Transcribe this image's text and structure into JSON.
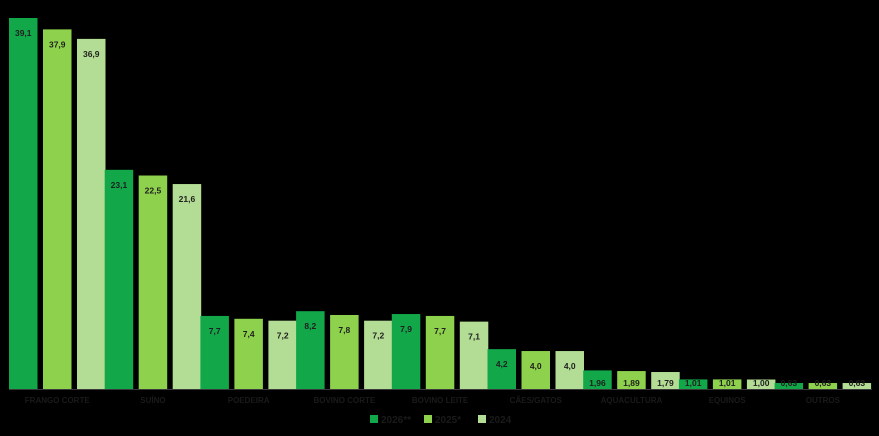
{
  "chart_data": {
    "type": "bar",
    "title": "",
    "xlabel": "",
    "ylabel": "",
    "ylim": [
      0,
      39.1
    ],
    "grid": false,
    "legend_position": "bottom",
    "categories": [
      "FRANGO CORTE",
      "SUÍNO",
      "POEDEIRA",
      "BOVINO CORTE",
      "BOVINO LEITE",
      "CÃES/GATOS",
      "AQUACULTURA",
      "EQUINOS",
      "OUTROS"
    ],
    "series": [
      {
        "name": "2026**",
        "color": "#12a84a",
        "values": [
          39.1,
          23.1,
          7.7,
          8.2,
          7.9,
          4.2,
          1.96,
          1.01,
          0.63
        ],
        "labels": [
          "39,1",
          "23,1",
          "7,7",
          "8,2",
          "7,9",
          "4,2",
          "1,96",
          "1,01",
          "0,63"
        ]
      },
      {
        "name": "2025*",
        "color": "#8ed14d",
        "values": [
          37.9,
          22.5,
          7.4,
          7.8,
          7.7,
          4.0,
          1.89,
          1.01,
          0.63
        ],
        "labels": [
          "37,9",
          "22,5",
          "7,4",
          "7,8",
          "7,7",
          "4,0",
          "1,89",
          "1,01",
          "0,63"
        ]
      },
      {
        "name": "2024",
        "color": "#b3dc94",
        "values": [
          36.9,
          21.6,
          7.2,
          7.2,
          7.1,
          4.0,
          1.79,
          1.0,
          0.63
        ],
        "labels": [
          "36,9",
          "21,6",
          "7,2",
          "7,2",
          "7,1",
          "4,0",
          "1,79",
          "1,00",
          "0,63"
        ]
      }
    ]
  }
}
